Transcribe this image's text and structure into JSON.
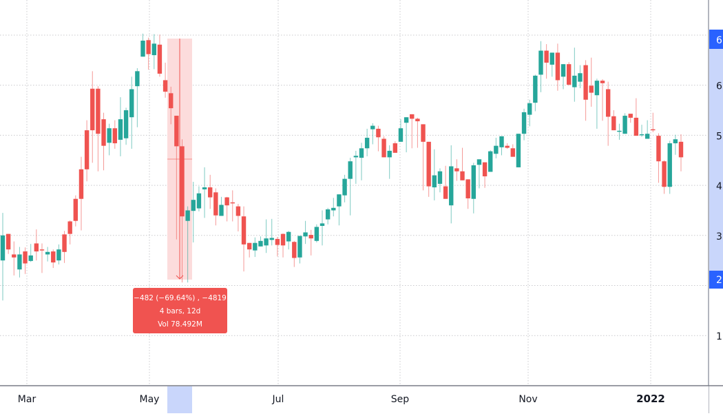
{
  "chart_data": {
    "type": "candlestick",
    "title": "",
    "xlabel": "",
    "ylabel": "",
    "x_ticks": [
      {
        "label": "Mar",
        "x": 39
      },
      {
        "label": "May",
        "x": 217
      },
      {
        "label": "Jul",
        "x": 404
      },
      {
        "label": "Sep",
        "x": 581
      },
      {
        "label": "Nov",
        "x": 767
      },
      {
        "label": "2022",
        "x": 945
      }
    ],
    "y_ticks": [
      {
        "label": "6",
        "value": 600
      },
      {
        "label": "5",
        "value": 500
      },
      {
        "label": "4",
        "value": 400
      },
      {
        "label": "3",
        "value": 300
      },
      {
        "label": "1",
        "value": 100
      }
    ],
    "y_highlight_labels": [
      {
        "label": "6",
        "value": 692
      },
      {
        "label": "2",
        "value": 210
      }
    ],
    "ylim": [
      0,
      730
    ],
    "grid": true,
    "colors": {
      "up": "#26a69a",
      "down": "#ef5350",
      "accent": "#2962ff",
      "range_band": "#c9d6fb",
      "measure_fill": "#fcdcdc"
    },
    "candles_ohlc": [
      [
        250,
        300,
        345,
        170
      ],
      [
        303,
        272,
        300,
        263
      ],
      [
        262,
        256,
        288,
        220
      ],
      [
        232,
        262,
        277,
        216
      ],
      [
        268,
        244,
        276,
        223
      ],
      [
        249,
        260,
        283,
        247
      ],
      [
        284,
        268,
        312,
        250
      ],
      [
        272,
        270,
        284,
        225
      ],
      [
        262,
        267,
        277,
        248
      ],
      [
        268,
        246,
        272,
        235
      ],
      [
        250,
        272,
        282,
        242
      ],
      [
        302,
        267,
        309,
        245
      ],
      [
        328,
        303,
        330,
        282
      ],
      [
        373,
        329,
        380,
        318
      ],
      [
        432,
        373,
        457,
        310
      ],
      [
        510,
        432,
        530,
        408
      ],
      [
        593,
        510,
        628,
        445
      ],
      [
        593,
        503,
        598,
        428
      ],
      [
        532,
        479,
        545,
        430
      ],
      [
        485,
        514,
        523,
        460
      ],
      [
        514,
        484,
        530,
        473
      ],
      [
        491,
        532,
        576,
        458
      ],
      [
        494,
        550,
        555,
        481
      ],
      [
        536,
        592,
        617,
        473
      ],
      [
        598,
        628,
        634,
        516
      ],
      [
        657,
        689,
        703,
        660
      ],
      [
        690,
        662,
        695,
        631
      ],
      [
        660,
        683,
        702,
        632
      ],
      [
        681,
        623,
        701,
        617
      ],
      [
        610,
        587,
        645,
        575
      ],
      [
        584,
        554,
        597,
        522
      ],
      [
        539,
        478,
        538,
        292
      ],
      [
        478,
        338,
        492,
        206
      ],
      [
        329,
        350,
        358,
        206
      ],
      [
        349,
        371,
        407,
        286
      ],
      [
        354,
        384,
        398,
        348
      ],
      [
        392,
        396,
        436,
        335
      ],
      [
        396,
        376,
        421,
        353
      ],
      [
        386,
        340,
        394,
        320
      ],
      [
        339,
        361,
        377,
        353
      ],
      [
        376,
        360,
        377,
        328
      ],
      [
        366,
        365,
        390,
        328
      ],
      [
        358,
        339,
        363,
        308
      ],
      [
        338,
        282,
        358,
        228
      ],
      [
        285,
        272,
        283,
        256
      ],
      [
        270,
        285,
        296,
        257
      ],
      [
        278,
        289,
        298,
        279
      ],
      [
        280,
        294,
        332,
        265
      ],
      [
        291,
        295,
        333,
        280
      ],
      [
        293,
        281,
        297,
        258
      ],
      [
        303,
        280,
        304,
        256
      ],
      [
        288,
        307,
        309,
        272
      ],
      [
        287,
        255,
        289,
        237
      ],
      [
        256,
        299,
        295,
        244
      ],
      [
        298,
        306,
        329,
        283
      ],
      [
        301,
        294,
        311,
        260
      ],
      [
        289,
        317,
        322,
        286
      ],
      [
        319,
        324,
        350,
        280
      ],
      [
        332,
        352,
        355,
        322
      ],
      [
        350,
        355,
        375,
        338
      ],
      [
        358,
        382,
        382,
        320
      ],
      [
        380,
        413,
        421,
        366
      ],
      [
        413,
        448,
        455,
        340
      ],
      [
        456,
        459,
        469,
        403
      ],
      [
        455,
        474,
        485,
        410
      ],
      [
        474,
        495,
        513,
        458
      ],
      [
        512,
        519,
        524,
        482
      ],
      [
        513,
        496,
        519,
        468
      ],
      [
        493,
        456,
        498,
        459
      ],
      [
        456,
        469,
        480,
        413
      ],
      [
        484,
        465,
        488,
        466
      ],
      [
        487,
        514,
        532,
        490
      ],
      [
        525,
        536,
        527,
        466
      ],
      [
        542,
        533,
        535,
        474
      ],
      [
        533,
        528,
        535,
        475
      ],
      [
        522,
        487,
        519,
        390
      ],
      [
        487,
        398,
        477,
        377
      ],
      [
        396,
        420,
        472,
        370
      ],
      [
        403,
        428,
        434,
        386
      ],
      [
        398,
        373,
        439,
        390
      ],
      [
        360,
        438,
        480,
        324
      ],
      [
        434,
        428,
        452,
        409
      ],
      [
        428,
        410,
        475,
        410
      ],
      [
        412,
        374,
        409,
        353
      ],
      [
        373,
        440,
        445,
        344
      ],
      [
        441,
        452,
        447,
        394
      ],
      [
        446,
        418,
        437,
        395
      ],
      [
        427,
        468,
        470,
        436
      ],
      [
        463,
        479,
        495,
        454
      ],
      [
        476,
        498,
        482,
        460
      ],
      [
        479,
        475,
        484,
        473
      ],
      [
        474,
        457,
        482,
        460
      ],
      [
        436,
        503,
        485,
        456
      ],
      [
        503,
        546,
        553,
        490
      ],
      [
        541,
        564,
        571,
        518
      ],
      [
        565,
        619,
        621,
        548
      ],
      [
        621,
        669,
        688,
        586
      ],
      [
        669,
        645,
        682,
        613
      ],
      [
        641,
        665,
        665,
        617
      ],
      [
        665,
        610,
        683,
        589
      ],
      [
        617,
        642,
        634,
        592
      ],
      [
        642,
        601,
        646,
        599
      ],
      [
        596,
        619,
        675,
        567
      ],
      [
        607,
        624,
        640,
        594
      ],
      [
        640,
        571,
        650,
        529
      ],
      [
        599,
        585,
        655,
        557
      ],
      [
        580,
        609,
        613,
        513
      ],
      [
        609,
        604,
        612,
        529
      ],
      [
        592,
        537,
        607,
        479
      ],
      [
        538,
        510,
        550,
        510
      ],
      [
        509,
        509,
        523,
        491
      ],
      [
        503,
        539,
        544,
        522
      ],
      [
        543,
        535,
        542,
        525
      ],
      [
        535,
        499,
        574,
        500
      ],
      [
        502,
        502,
        521,
        497
      ],
      [
        493,
        503,
        530,
        503
      ],
      [
        512,
        510,
        545,
        506
      ],
      [
        499,
        448,
        504,
        405
      ],
      [
        448,
        397,
        450,
        383
      ],
      [
        397,
        484,
        489,
        383
      ],
      [
        484,
        492,
        501,
        461
      ],
      [
        487,
        456,
        502,
        428
      ]
    ],
    "measure": {
      "delta": "−482 (−69.64%) , −4819",
      "bars": "4 bars, 12d",
      "volume": "Vol 78.492M"
    }
  },
  "measure_label": {
    "line1": "−482 (−69.64%) , −4819",
    "line2": "4 bars, 12d",
    "line3": "Vol 78.492M"
  },
  "axis": {
    "x_labels": [
      "Mar",
      "May",
      "Jul",
      "Sep",
      "Nov",
      "2022"
    ],
    "y_labels": [
      "6",
      "6",
      "5",
      "4",
      "3",
      "2",
      "1"
    ]
  }
}
